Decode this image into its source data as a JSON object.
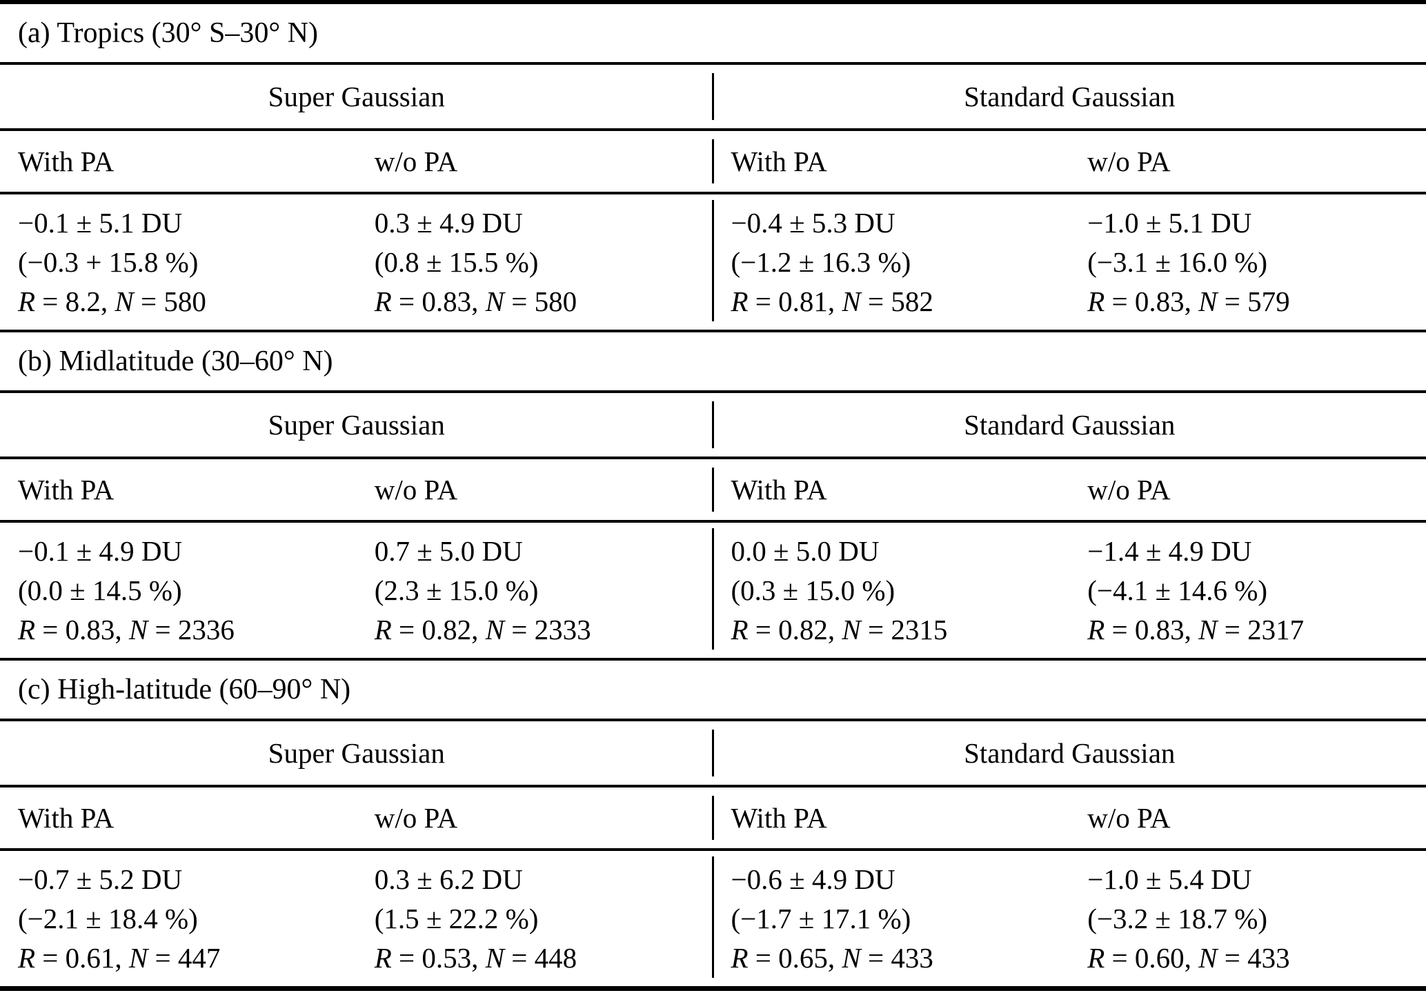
{
  "table": {
    "group_headers": {
      "left": "Super Gaussian",
      "right": "Standard Gaussian"
    },
    "col_headers": {
      "with_pa": "With PA",
      "wo_pa": "w/o PA"
    },
    "glue": {
      "r_label": "R",
      "n_label": "N",
      "eq": " = ",
      "sep": ", "
    },
    "colors": {
      "text": "#000000",
      "background": "#ffffff",
      "rule": "#000000"
    },
    "sections": [
      {
        "title": "(a) Tropics (30° S–30° N)",
        "cells": [
          {
            "du": "−0.1 ± 5.1 DU",
            "pct": "(−0.3 + 15.8 %)",
            "r": "8.2",
            "n": "580"
          },
          {
            "du": "0.3 ± 4.9 DU",
            "pct": "(0.8 ± 15.5 %)",
            "r": "0.83",
            "n": "580"
          },
          {
            "du": "−0.4 ± 5.3 DU",
            "pct": "(−1.2 ± 16.3 %)",
            "r": "0.81",
            "n": "582"
          },
          {
            "du": "−1.0 ± 5.1 DU",
            "pct": "(−3.1 ± 16.0 %)",
            "r": "0.83",
            "n": "579"
          }
        ]
      },
      {
        "title": "(b) Midlatitude (30–60° N)",
        "cells": [
          {
            "du": "−0.1 ± 4.9 DU",
            "pct": "(0.0 ± 14.5 %)",
            "r": "0.83",
            "n": "2336"
          },
          {
            "du": "0.7 ± 5.0 DU",
            "pct": "(2.3 ± 15.0 %)",
            "r": "0.82",
            "n": "2333"
          },
          {
            "du": "0.0 ± 5.0 DU",
            "pct": "(0.3 ± 15.0 %)",
            "r": "0.82",
            "n": "2315"
          },
          {
            "du": "−1.4 ± 4.9 DU",
            "pct": "(−4.1 ± 14.6 %)",
            "r": "0.83",
            "n": "2317"
          }
        ]
      },
      {
        "title": "(c) High-latitude (60–90° N)",
        "cells": [
          {
            "du": "−0.7 ± 5.2 DU",
            "pct": "(−2.1 ± 18.4 %)",
            "r": "0.61",
            "n": "447"
          },
          {
            "du": "0.3 ± 6.2 DU",
            "pct": "(1.5 ± 22.2 %)",
            "r": "0.53",
            "n": "448"
          },
          {
            "du": "−0.6 ± 4.9 DU",
            "pct": "(−1.7 ± 17.1 %)",
            "r": "0.65",
            "n": "433"
          },
          {
            "du": "−1.0 ± 5.4 DU",
            "pct": "(−3.2 ± 18.7 %)",
            "r": "0.60",
            "n": "433"
          }
        ]
      }
    ]
  }
}
